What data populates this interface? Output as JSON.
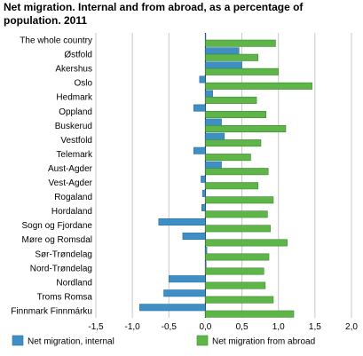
{
  "chart_data": {
    "type": "bar",
    "orientation": "horizontal",
    "title": "Net migration. Internal and from abroad, as a percentage of population. 2011",
    "xlim": [
      -1.5,
      2.0
    ],
    "x_ticks": [
      "-1,5",
      "-1,0",
      "-0,5",
      "0,0",
      "0,5",
      "1,0",
      "1,5",
      "2,0"
    ],
    "grid": "vertical",
    "legend_position": "bottom",
    "categories": [
      "The whole country",
      "Østfold",
      "Akershus",
      "Oslo",
      "Hedmark",
      "Oppland",
      "Buskerud",
      "Vestfold",
      "Telemark",
      "Aust-Agder",
      "Vest-Agder",
      "Rogaland",
      "Hordaland",
      "Sogn og Fjordane",
      "Møre og Romsdal",
      "Sør-Trøndelag",
      "Nord-Trøndelag",
      "Nordland",
      "Troms Romsa",
      "Finnmark Finnmárku"
    ],
    "series": [
      {
        "name": "Net migration, internal",
        "color": "#3d8fc6",
        "values": [
          0.0,
          0.46,
          0.5,
          -0.08,
          0.1,
          -0.16,
          0.22,
          0.26,
          -0.16,
          0.22,
          -0.06,
          -0.04,
          -0.05,
          -0.64,
          -0.31,
          0.02,
          0.01,
          -0.5,
          -0.57,
          -0.9
        ]
      },
      {
        "name": "Net migration from abroad",
        "color": "#5eb648",
        "values": [
          0.96,
          0.72,
          1.0,
          1.46,
          0.7,
          0.83,
          1.1,
          0.76,
          0.62,
          0.86,
          0.72,
          0.93,
          0.85,
          0.89,
          1.12,
          0.87,
          0.8,
          0.82,
          0.93,
          1.21
        ]
      }
    ]
  }
}
